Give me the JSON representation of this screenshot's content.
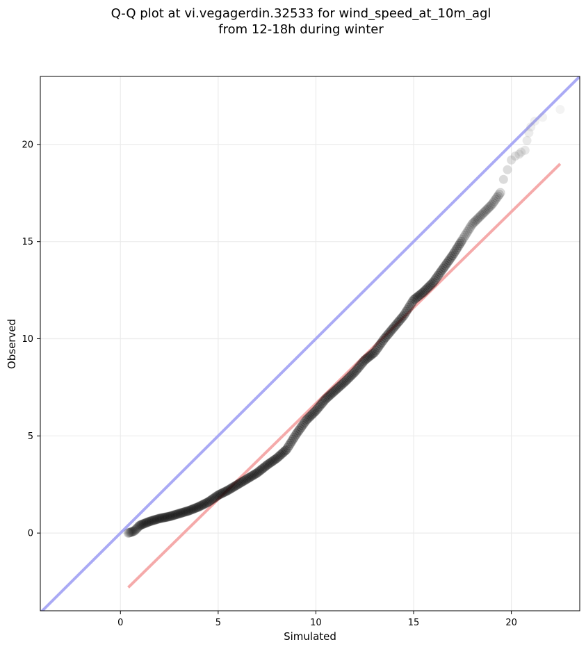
{
  "title_line1": "Q-Q plot at vi.vegagerdin.32533 for wind_speed_at_10m_agl",
  "title_line2": "from 12-18h during winter",
  "chart_data": {
    "type": "scatter",
    "title": "Q-Q plot at vi.vegagerdin.32533 for wind_speed_at_10m_agl from 12-18h during winter",
    "xlabel": "Simulated",
    "ylabel": "Observed",
    "xlim": [
      -4.1,
      23.5
    ],
    "ylim": [
      -4.0,
      23.5
    ],
    "xticks": [
      0,
      5,
      10,
      15,
      20
    ],
    "yticks": [
      0,
      5,
      10,
      15,
      20
    ],
    "xtick_labels": [
      "0",
      "5",
      "10",
      "15",
      "20"
    ],
    "ytick_labels": [
      "0",
      "5",
      "10",
      "15",
      "20"
    ],
    "grid": true,
    "legend": "none",
    "reference_line": {
      "name": "1:1 line",
      "color": "#aaaaf5",
      "x": [
        -4.1,
        23.5
      ],
      "y": [
        -4.1,
        23.5
      ]
    },
    "fit_line": {
      "name": "fit",
      "color": "#f5aaaa",
      "x": [
        0.4,
        22.5
      ],
      "y": [
        -2.8,
        19.0
      ]
    },
    "quantile_curve": {
      "color": "#000000",
      "x": [
        0.4,
        0.7,
        1.0,
        1.5,
        2.0,
        2.5,
        3.0,
        3.5,
        4.0,
        4.5,
        5.0,
        5.5,
        6.0,
        6.5,
        7.0,
        7.5,
        8.0,
        8.5,
        9.0,
        9.5,
        10.0,
        10.5,
        11.0,
        11.5,
        12.0,
        12.5,
        13.0,
        13.5,
        14.0,
        14.5,
        15.0,
        15.5,
        16.0,
        16.5,
        17.0,
        17.5,
        18.0,
        18.5,
        19.0,
        19.5
      ],
      "y": [
        0.0,
        0.1,
        0.4,
        0.6,
        0.75,
        0.85,
        1.0,
        1.15,
        1.35,
        1.6,
        1.95,
        2.2,
        2.5,
        2.8,
        3.1,
        3.5,
        3.85,
        4.3,
        5.1,
        5.8,
        6.3,
        6.9,
        7.35,
        7.8,
        8.3,
        8.9,
        9.3,
        10.0,
        10.6,
        11.2,
        12.0,
        12.4,
        12.9,
        13.6,
        14.3,
        15.1,
        15.9,
        16.4,
        16.9,
        17.6
      ]
    },
    "tail_points": {
      "color": "#999999",
      "x": [
        19.6,
        19.8,
        20.0,
        20.2,
        20.4,
        20.5,
        20.7,
        20.8,
        20.9,
        21.0,
        21.2,
        21.6,
        22.5
      ],
      "y": [
        18.2,
        18.7,
        19.2,
        19.4,
        19.5,
        19.6,
        19.7,
        20.2,
        20.6,
        20.9,
        21.2,
        21.4,
        21.8
      ]
    }
  }
}
